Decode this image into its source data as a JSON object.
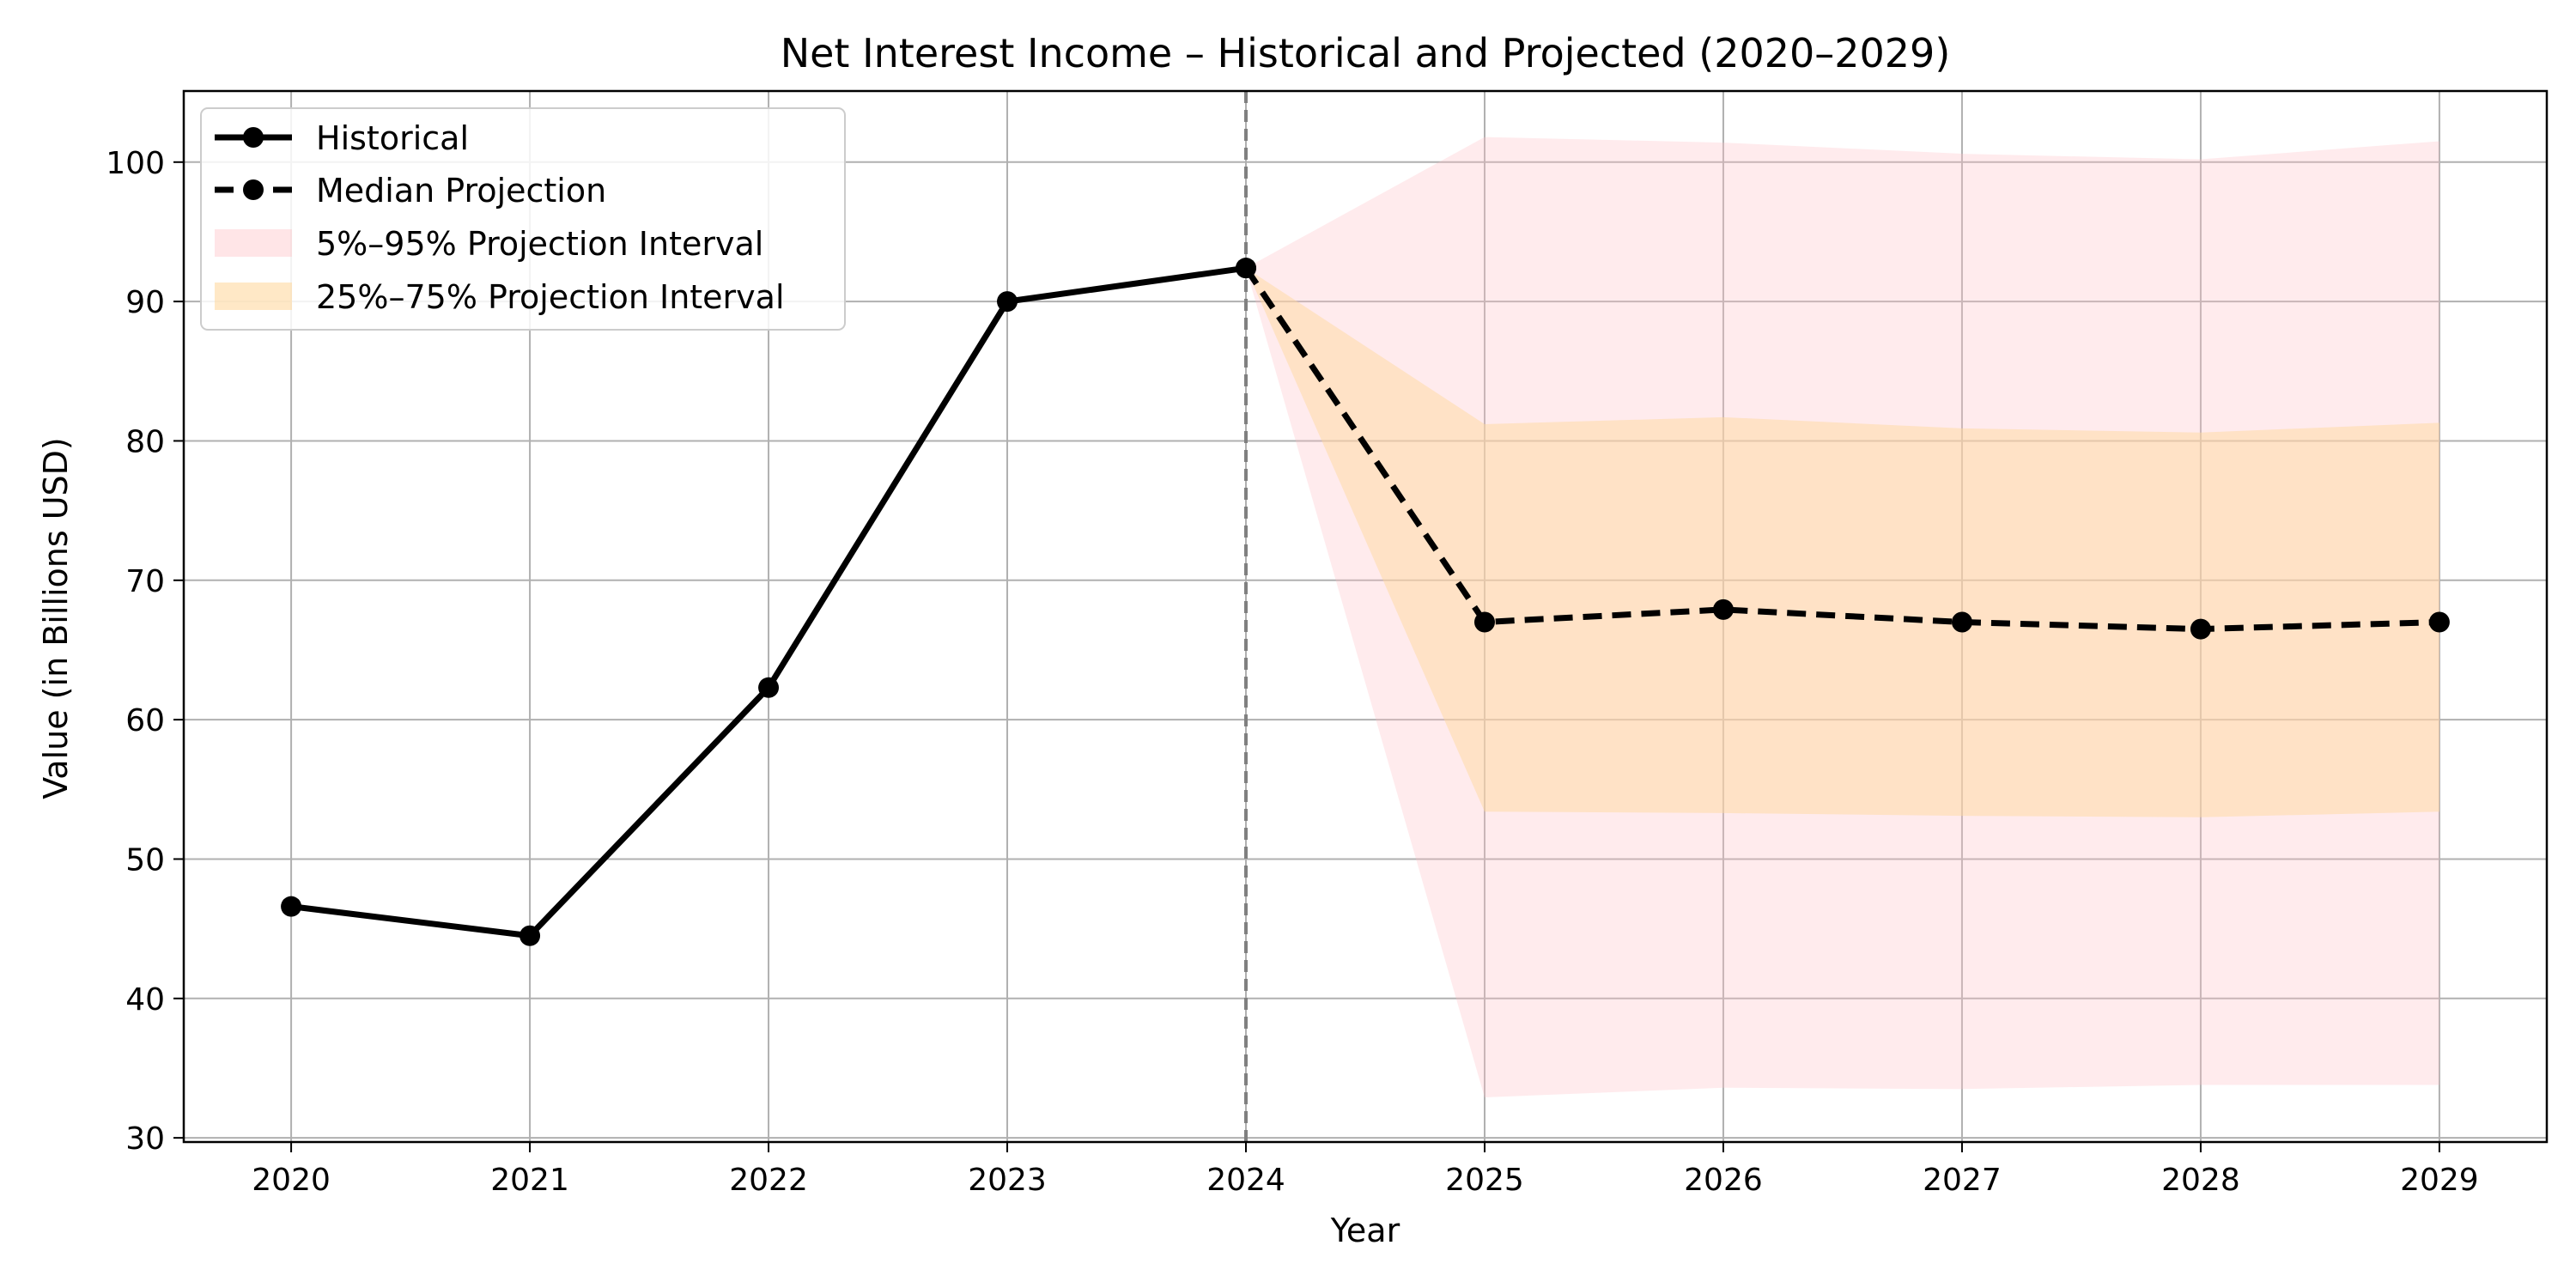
{
  "chart_data": {
    "type": "line",
    "title": "Net Interest Income – Historical and Projected (2020–2029)",
    "xlabel": "Year",
    "ylabel": "Value (in Billions USD)",
    "xlim": [
      2019.55,
      2029.45
    ],
    "ylim": [
      29.7,
      105.1
    ],
    "x_ticks": [
      2020,
      2021,
      2022,
      2023,
      2024,
      2025,
      2026,
      2027,
      2028,
      2029
    ],
    "y_ticks": [
      30,
      40,
      50,
      60,
      70,
      80,
      90,
      100
    ],
    "grid": true,
    "legend_position": "top-left",
    "divider_x": 2024,
    "series": [
      {
        "name": "Historical",
        "style": "solid",
        "color": "#000000",
        "x": [
          2020,
          2021,
          2022,
          2023,
          2024
        ],
        "values": [
          46.6,
          44.5,
          62.3,
          90.0,
          92.4
        ]
      },
      {
        "name": "Median Projection",
        "style": "dashed",
        "color": "#000000",
        "x": [
          2024,
          2025,
          2026,
          2027,
          2028,
          2029
        ],
        "values": [
          92.4,
          67.0,
          67.9,
          67.0,
          66.5,
          67.0
        ]
      }
    ],
    "bands": [
      {
        "name": "5%–95% Projection Interval",
        "color": "#ffc0c6",
        "opacity": 0.32,
        "x": [
          2024,
          2025,
          2026,
          2027,
          2028,
          2029
        ],
        "lower": [
          92.4,
          32.9,
          33.6,
          33.5,
          33.8,
          33.8
        ],
        "upper": [
          92.4,
          101.8,
          101.4,
          100.6,
          100.2,
          101.5
        ]
      },
      {
        "name": "25%–75% Projection Interval",
        "color": "#ffd9a0",
        "opacity": 0.5,
        "x": [
          2024,
          2025,
          2026,
          2027,
          2028,
          2029
        ],
        "lower": [
          92.4,
          53.4,
          53.3,
          53.1,
          53.0,
          53.4
        ],
        "upper": [
          92.4,
          81.2,
          81.7,
          80.9,
          80.6,
          81.3
        ]
      }
    ],
    "divider_color": "#808080"
  }
}
